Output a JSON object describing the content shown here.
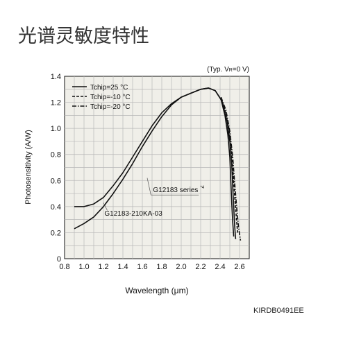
{
  "page": {
    "title": "光谱灵敏度特性",
    "figure_code": "KIRDB0491EE"
  },
  "chart_data": {
    "type": "line",
    "title": "",
    "condition": "(Typ. V",
    "condition_sub": "R",
    "condition_end": "=0 V)",
    "xlabel": "Wavelength (μm)",
    "ylabel": "Photosensitivity (A/W)",
    "xlim": [
      0.8,
      2.7
    ],
    "ylim": [
      0,
      1.4
    ],
    "xticks": [
      "0.8",
      "1.0",
      "1.2",
      "1.4",
      "1.6",
      "1.8",
      "2.0",
      "2.2",
      "2.4",
      "2.6"
    ],
    "xtick_values": [
      0.8,
      1.0,
      1.2,
      1.4,
      1.6,
      1.8,
      2.0,
      2.2,
      2.4,
      2.6
    ],
    "yticks": [
      "0",
      "0.2",
      "0.4",
      "0.6",
      "0.8",
      "1.0",
      "1.2",
      "1.4"
    ],
    "ytick_values": [
      0,
      0.2,
      0.4,
      0.6,
      0.8,
      1.0,
      1.2,
      1.4
    ],
    "grid": true,
    "grid_color": "#b8b8b8",
    "background_color": "#f0efe9",
    "legend_position": "top-left",
    "legend": [
      {
        "label": "Tchip=25 °C",
        "style": "solid"
      },
      {
        "label": "Tchip=-10 °C",
        "style": "dashed"
      },
      {
        "label": "Tchip=-20 °C",
        "style": "dash-dot"
      }
    ],
    "annotations": [
      {
        "text": "G12183 series",
        "sup": "*4",
        "at": [
          1.71,
          0.51
        ]
      },
      {
        "text": "G12183-210KA-03",
        "at": [
          1.21,
          0.33
        ]
      }
    ],
    "series": [
      {
        "style": "solid",
        "points": [
          [
            0.9,
            0.23
          ],
          [
            1.0,
            0.27
          ],
          [
            1.1,
            0.32
          ],
          [
            1.2,
            0.4
          ],
          [
            1.3,
            0.5
          ],
          [
            1.4,
            0.61
          ],
          [
            1.5,
            0.73
          ],
          [
            1.6,
            0.86
          ],
          [
            1.7,
            0.98
          ],
          [
            1.8,
            1.09
          ],
          [
            1.9,
            1.18
          ],
          [
            2.0,
            1.24
          ],
          [
            2.1,
            1.27
          ],
          [
            2.2,
            1.3
          ],
          [
            2.28,
            1.31
          ],
          [
            2.35,
            1.29
          ],
          [
            2.41,
            1.22
          ],
          [
            2.45,
            1.1
          ],
          [
            2.48,
            0.95
          ],
          [
            2.5,
            0.78
          ],
          [
            2.51,
            0.6
          ],
          [
            2.52,
            0.42
          ],
          [
            2.53,
            0.28
          ],
          [
            2.54,
            0.17
          ]
        ]
      },
      {
        "style": "solid",
        "points": [
          [
            0.9,
            0.4
          ],
          [
            1.0,
            0.4
          ],
          [
            1.1,
            0.42
          ],
          [
            1.2,
            0.47
          ],
          [
            1.3,
            0.56
          ],
          [
            1.4,
            0.66
          ],
          [
            1.5,
            0.78
          ],
          [
            1.6,
            0.9
          ],
          [
            1.7,
            1.02
          ],
          [
            1.8,
            1.12
          ],
          [
            1.9,
            1.19
          ],
          [
            2.0,
            1.24
          ],
          [
            2.1,
            1.27
          ],
          [
            2.2,
            1.3
          ],
          [
            2.28,
            1.31
          ],
          [
            2.35,
            1.29
          ],
          [
            2.42,
            1.21
          ],
          [
            2.47,
            1.06
          ],
          [
            2.5,
            0.9
          ],
          [
            2.52,
            0.72
          ],
          [
            2.53,
            0.55
          ],
          [
            2.54,
            0.4
          ],
          [
            2.55,
            0.25
          ],
          [
            2.56,
            0.15
          ]
        ]
      },
      {
        "style": "dashed",
        "points": [
          [
            2.41,
            1.23
          ],
          [
            2.45,
            1.14
          ],
          [
            2.49,
            1.0
          ],
          [
            2.52,
            0.8
          ],
          [
            2.54,
            0.58
          ],
          [
            2.56,
            0.38
          ],
          [
            2.58,
            0.2
          ]
        ]
      },
      {
        "style": "dash-dot",
        "points": [
          [
            2.41,
            1.24
          ],
          [
            2.46,
            1.14
          ],
          [
            2.5,
            0.98
          ],
          [
            2.53,
            0.78
          ],
          [
            2.55,
            0.58
          ],
          [
            2.57,
            0.4
          ],
          [
            2.59,
            0.24
          ],
          [
            2.61,
            0.14
          ]
        ]
      }
    ]
  }
}
